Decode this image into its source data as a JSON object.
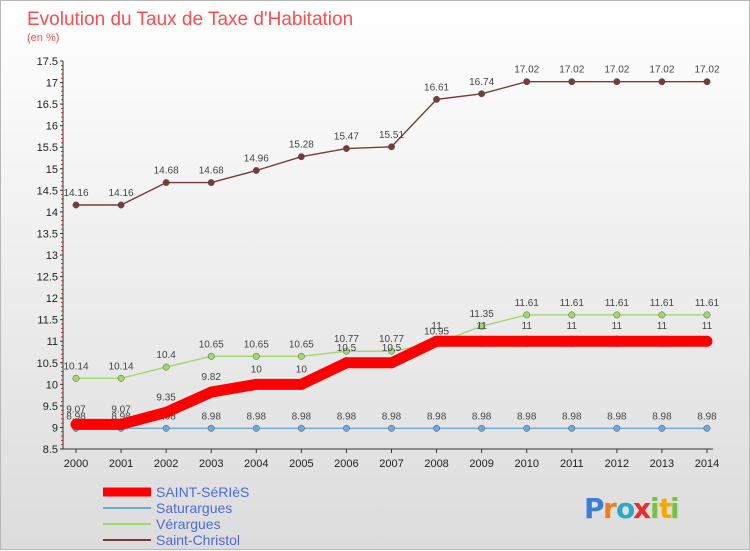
{
  "chart_data": {
    "type": "line",
    "title": "Evolution du Taux de Taxe d'Habitation",
    "subtitle": "(en %)",
    "x": [
      "2000",
      "2001",
      "2002",
      "2003",
      "2004",
      "2005",
      "2006",
      "2007",
      "2008",
      "2009",
      "2010",
      "2011",
      "2012",
      "2013",
      "2014"
    ],
    "ylim": [
      8.5,
      17.5
    ],
    "yticks": [
      "8.5",
      "9",
      "9.5",
      "10",
      "10.5",
      "11",
      "11.5",
      "12",
      "12.5",
      "13",
      "13.5",
      "14",
      "14.5",
      "15",
      "15.5",
      "16",
      "16.5",
      "17",
      "17.5"
    ],
    "grid": false,
    "legend_position": "bottom-left",
    "series": [
      {
        "name": "SAINT-SéRIèS",
        "color": "#ff0000",
        "values": [
          9.07,
          9.07,
          9.35,
          9.82,
          10,
          10,
          10.5,
          10.5,
          11,
          11,
          11,
          11,
          11,
          11,
          11
        ],
        "labels": [
          "9.07",
          "9.07",
          "9.35",
          "9.82",
          "10",
          "10",
          "10.5",
          "10.5",
          "11",
          "11",
          "11",
          "11",
          "11",
          "11",
          "11"
        ]
      },
      {
        "name": "Saturargues",
        "color": "#6fa8dc",
        "values": [
          8.98,
          8.98,
          8.98,
          8.98,
          8.98,
          8.98,
          8.98,
          8.98,
          8.98,
          8.98,
          8.98,
          8.98,
          8.98,
          8.98,
          8.98
        ],
        "labels": [
          "8.98",
          "8.98",
          "8.98",
          "8.98",
          "8.98",
          "8.98",
          "8.98",
          "8.98",
          "8.98",
          "8.98",
          "8.98",
          "8.98",
          "8.98",
          "8.98",
          "8.98"
        ]
      },
      {
        "name": "Vérargues",
        "color": "#9fd86b",
        "values": [
          10.14,
          10.14,
          10.4,
          10.65,
          10.65,
          10.65,
          10.77,
          10.77,
          10.95,
          11.35,
          11.61,
          11.61,
          11.61,
          11.61,
          11.61
        ],
        "labels": [
          "10.14",
          "10.14",
          "10.4",
          "10.65",
          "10.65",
          "10.65",
          "10.77",
          "10.77",
          "10.95",
          "11.35",
          "11.61",
          "11.61",
          "11.61",
          "11.61",
          "11.61"
        ]
      },
      {
        "name": "Saint-Christol",
        "color": "#7a3a3a",
        "values": [
          14.16,
          14.16,
          14.68,
          14.68,
          14.96,
          15.28,
          15.47,
          15.51,
          16.61,
          16.74,
          17.02,
          17.02,
          17.02,
          17.02,
          17.02
        ],
        "labels": [
          "14.16",
          "14.16",
          "14.68",
          "14.68",
          "14.96",
          "15.28",
          "15.47",
          "15.51",
          "16.61",
          "16.74",
          "17.02",
          "17.02",
          "17.02",
          "17.02",
          "17.02"
        ]
      }
    ]
  },
  "branding": {
    "letters": [
      "P",
      "r",
      "o",
      "x",
      "i",
      "t",
      "i"
    ],
    "colors": [
      "#3a7fd5",
      "#f07d1a",
      "#2aa8c9",
      "#e63030",
      "#7ac142",
      "#f6a800",
      "#7ac142"
    ]
  }
}
